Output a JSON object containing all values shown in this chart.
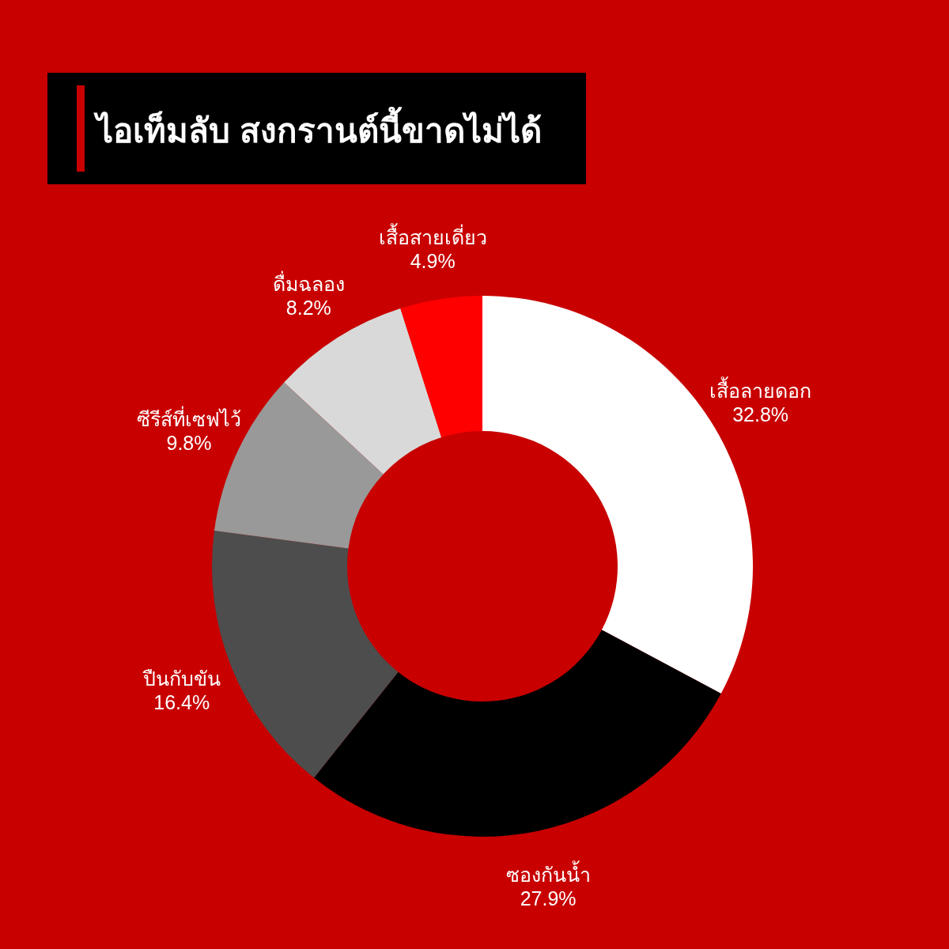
{
  "chart_data": {
    "type": "donut",
    "title": "ไอเท็มลับ สงกรานต์นี้ขาดไม่ได้",
    "categories": [
      "เสื้อลายดอก",
      "ซองกันน้ำ",
      "ปืนกับขัน",
      "ซีรีส์ที่เซฟไว้",
      "ดื่มฉลอง",
      "เสื้อสายเดี่ยว"
    ],
    "values": [
      32.8,
      27.9,
      16.4,
      9.8,
      8.2,
      4.9
    ],
    "colors": [
      "#ffffff",
      "#000000",
      "#4d4d4d",
      "#999999",
      "#d9d9d9",
      "#ff0000"
    ],
    "value_labels": [
      "32.8%",
      "27.9%",
      "16.4%",
      "9.8%",
      "8.2%",
      "4.9%"
    ]
  }
}
